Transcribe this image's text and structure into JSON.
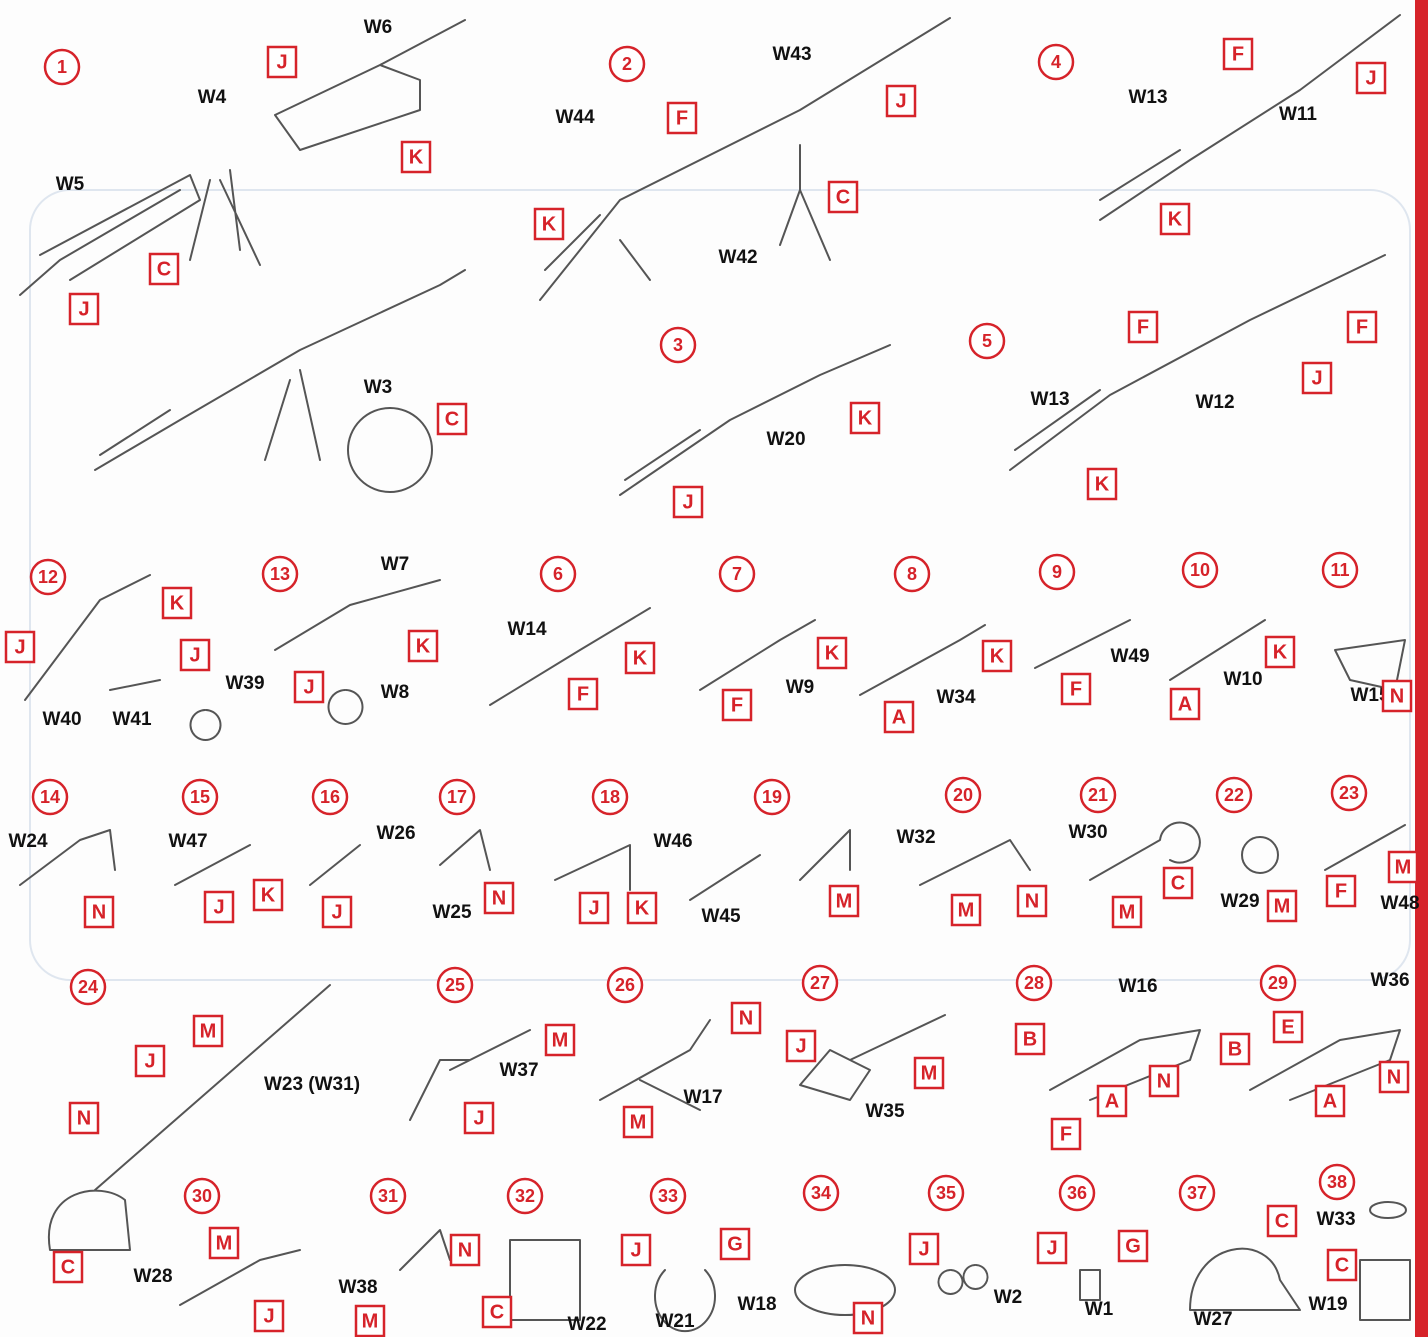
{
  "steps": [
    "1",
    "2",
    "4",
    "3",
    "5",
    "12",
    "13",
    "6",
    "7",
    "8",
    "9",
    "10",
    "11",
    "14",
    "15",
    "16",
    "17",
    "18",
    "19",
    "20",
    "21",
    "22",
    "23",
    "24",
    "25",
    "26",
    "27",
    "28",
    "29",
    "30",
    "31",
    "32",
    "33",
    "34",
    "35",
    "36",
    "37",
    "38"
  ],
  "parts": [
    "W6",
    "W4",
    "W5",
    "W3",
    "W43",
    "W44",
    "W42",
    "W13",
    "W11",
    "W20",
    "W13",
    "W12",
    "W14",
    "W7",
    "W8",
    "W9",
    "W34",
    "W49",
    "W10",
    "W15",
    "W39",
    "W40",
    "W41",
    "W24",
    "W47",
    "W26",
    "W25",
    "W46",
    "W45",
    "W32",
    "W30",
    "W29",
    "W48",
    "W16",
    "W36",
    "W23 (W31)",
    "W37",
    "W17",
    "W35",
    "W28",
    "W38",
    "W22",
    "W21",
    "W18",
    "W2",
    "W1",
    "W27",
    "W33",
    "W19"
  ],
  "paint_codes": [
    "J",
    "K",
    "C",
    "J",
    "C",
    "F",
    "J",
    "K",
    "C",
    "F",
    "J",
    "K",
    "F",
    "F",
    "J",
    "K",
    "J",
    "K",
    "K",
    "J",
    "J",
    "K",
    "J",
    "K",
    "F",
    "K",
    "F",
    "K",
    "F",
    "A",
    "K",
    "A",
    "N",
    "N",
    "J",
    "K",
    "J",
    "N",
    "J",
    "K",
    "M",
    "N",
    "M",
    "C",
    "M",
    "M",
    "F",
    "M",
    "M",
    "J",
    "N",
    "C",
    "M",
    "J",
    "N",
    "M",
    "J",
    "M",
    "B",
    "N",
    "A",
    "F",
    "E",
    "B",
    "N",
    "A",
    "M",
    "J",
    "N",
    "M",
    "C",
    "J",
    "G",
    "N",
    "J",
    "J",
    "G",
    "C",
    "C"
  ]
}
